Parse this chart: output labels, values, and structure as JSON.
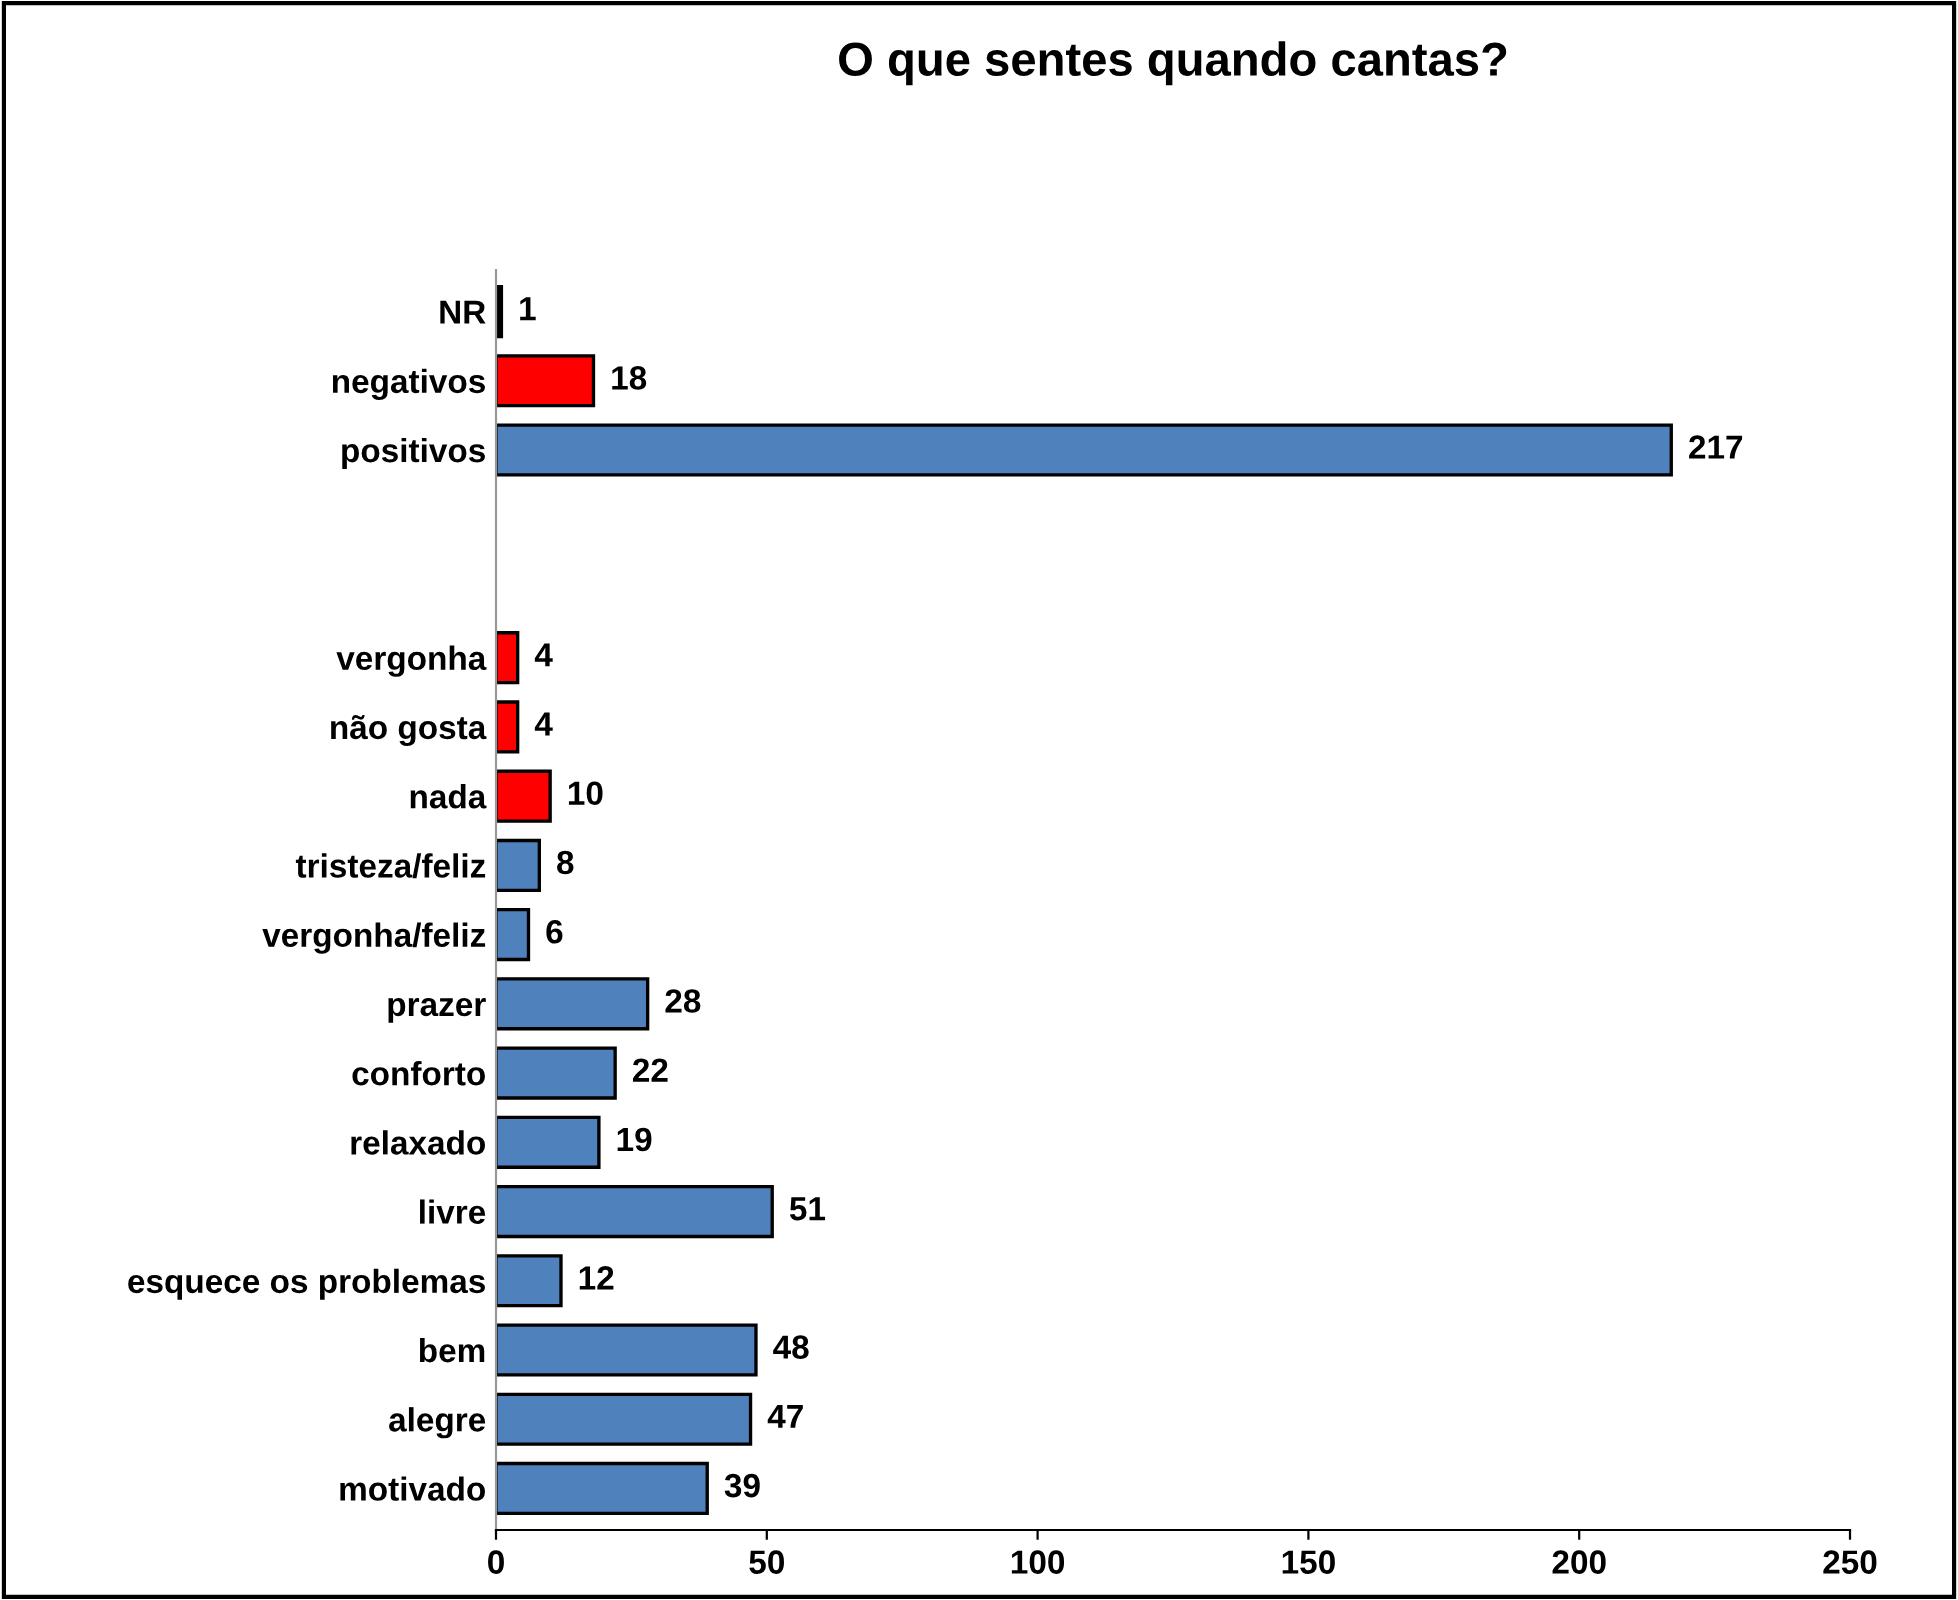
{
  "chart_data": {
    "type": "bar",
    "orientation": "horizontal",
    "title": "O que sentes quando cantas?",
    "categories": [
      "NR",
      "negativos",
      "positivos",
      null,
      null,
      "vergonha",
      "não gosta",
      "nada",
      "tristeza/feliz",
      "vergonha/feliz",
      "prazer",
      "conforto",
      "relaxado",
      "livre",
      "esquece os problemas",
      "bem",
      "alegre",
      "motivado"
    ],
    "values": [
      1,
      18,
      217,
      null,
      null,
      4,
      4,
      10,
      8,
      6,
      28,
      22,
      19,
      51,
      12,
      48,
      47,
      39
    ],
    "colors": [
      "#000000",
      "#ff0000",
      "#4f81bd",
      null,
      null,
      "#ff0000",
      "#ff0000",
      "#ff0000",
      "#4f81bd",
      "#4f81bd",
      "#4f81bd",
      "#4f81bd",
      "#4f81bd",
      "#4f81bd",
      "#4f81bd",
      "#4f81bd",
      "#4f81bd",
      "#4f81bd"
    ],
    "xlim": [
      0,
      250
    ],
    "xticks": [
      0,
      50,
      100,
      150,
      200,
      250
    ],
    "data_labels": true,
    "grid": false,
    "legend": false
  }
}
